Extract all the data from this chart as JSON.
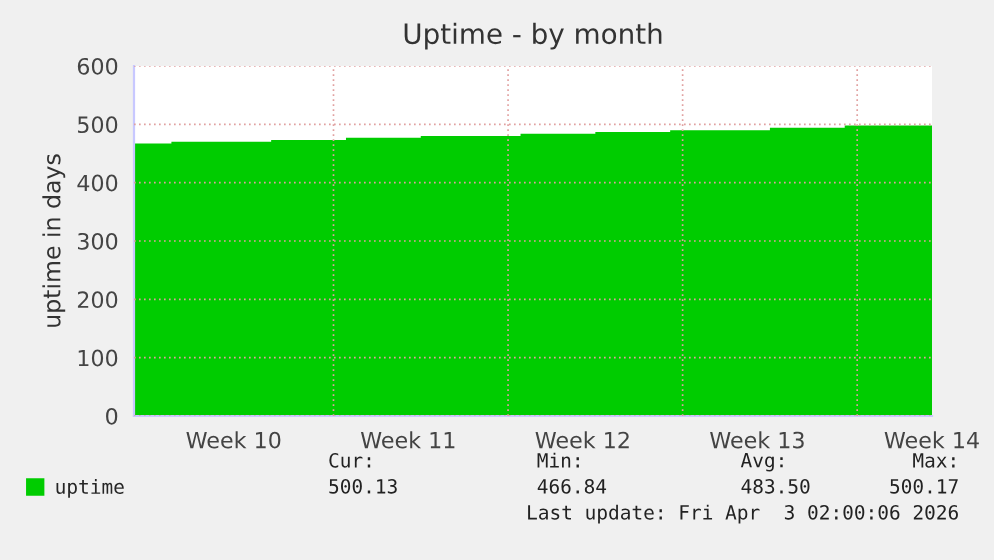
{
  "chart_data": {
    "type": "area",
    "title": "Uptime - by month",
    "ylabel": "uptime in days",
    "categories": [
      null,
      null,
      null,
      null,
      "Week 10",
      null,
      null,
      null,
      null,
      null,
      null,
      "Week 11",
      null,
      null,
      null,
      null,
      null,
      null,
      "Week 12",
      null,
      null,
      null,
      null,
      null,
      null,
      "Week 13",
      null,
      null,
      null,
      null,
      null,
      null,
      "Week 14"
    ],
    "series": [
      {
        "name": "uptime",
        "color": "#00cc00",
        "values": [
          467,
          467,
          470,
          470,
          470,
          470,
          473,
          473,
          473,
          477,
          477,
          477,
          480,
          480,
          480,
          480,
          484,
          484,
          484,
          487,
          487,
          487,
          490,
          490,
          490,
          490,
          494,
          494,
          494,
          498,
          498,
          498,
          498
        ]
      }
    ],
    "ylim": [
      0,
      600
    ],
    "yticks": [
      0,
      100,
      200,
      300,
      400,
      500,
      600
    ],
    "grid": true,
    "legend": "bottom left",
    "annotations": [
      "Cur:",
      "Min:",
      "Avg:",
      "Max:",
      "500.13",
      "466.84",
      "483.50",
      "500.17",
      "Last update: Fri Apr  3 02:00:06 2026"
    ]
  }
}
